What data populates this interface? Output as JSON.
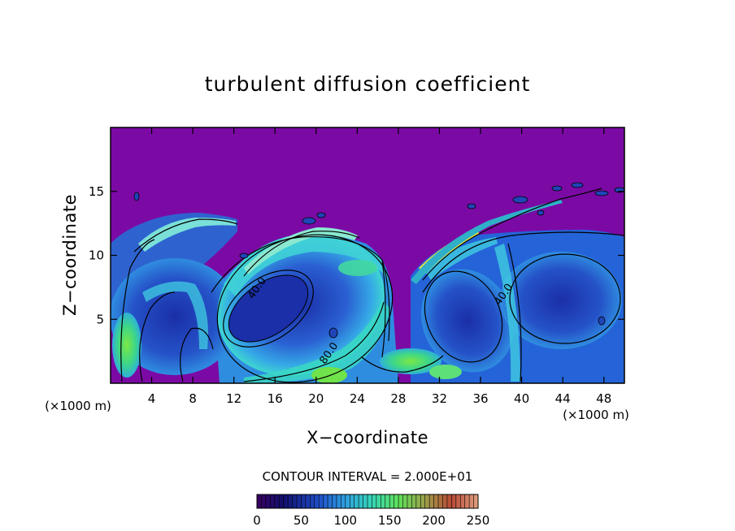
{
  "chart_data": {
    "type": "heatmap",
    "title": "turbulent diffusion coefficient",
    "xlabel": "X−coordinate",
    "ylabel": "Z−coordinate",
    "x_unit": "(×1000 m)",
    "y_unit": "(×1000 m)",
    "xlim": [
      0,
      50
    ],
    "ylim": [
      0,
      20
    ],
    "x_ticks": [
      4,
      8,
      12,
      16,
      20,
      24,
      28,
      32,
      36,
      40,
      44,
      48
    ],
    "y_ticks": [
      5,
      10,
      15
    ],
    "contour_interval_text": "CONTOUR INTERVAL = 2.000E+01",
    "contour_labels": [
      {
        "text": "40.0",
        "x": 14.5,
        "z": 7.3
      },
      {
        "text": "80.0",
        "x": 21.5,
        "z": 2.2
      },
      {
        "text": "40.0",
        "x": 38.5,
        "z": 6.8
      }
    ],
    "colorbar": {
      "min": 0,
      "max": 250,
      "ticks": [
        0,
        50,
        100,
        150,
        200,
        250
      ]
    },
    "colors": {
      "background_field": "#7b0aa5",
      "low": "#1c36b8",
      "mid": "#2f8de0",
      "high": "#2ee0b6",
      "peak": "#6ee64a"
    }
  }
}
